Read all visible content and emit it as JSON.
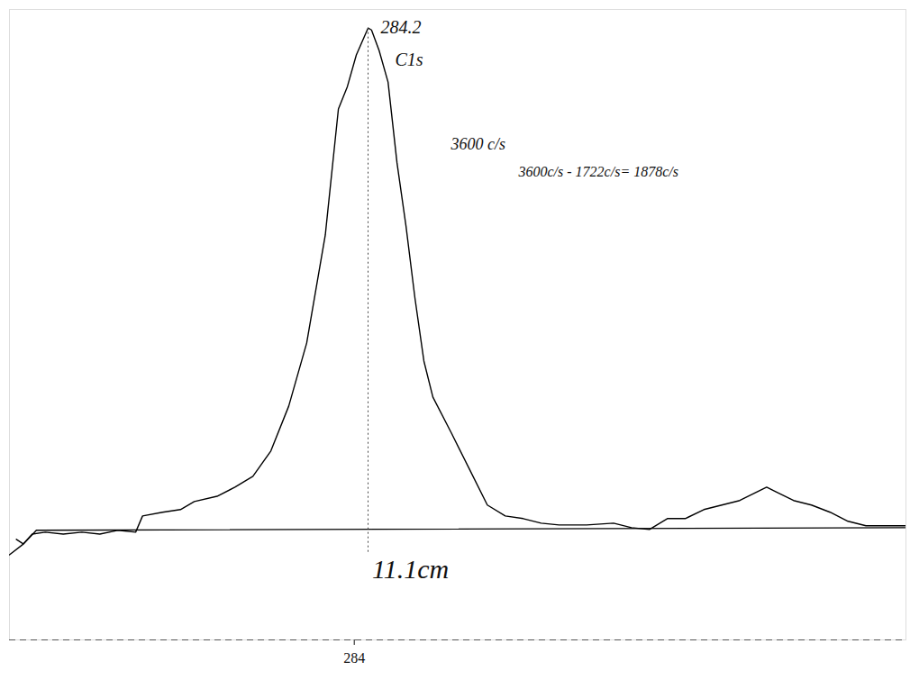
{
  "chart_data": {
    "type": "line",
    "series": [
      {
        "color": "#000000",
        "x": [
          279.1,
          279.2,
          279.33,
          279.52,
          279.78,
          280.05,
          280.31,
          280.57,
          280.83,
          280.93,
          281.22,
          281.48,
          281.68,
          282.01,
          282.27,
          282.53,
          282.79,
          283.05,
          283.31,
          283.58,
          283.77,
          283.9,
          284.03,
          284.2,
          284.25,
          284.36,
          284.49,
          284.62,
          284.75,
          284.88,
          285.01,
          285.14,
          285.41,
          285.67,
          285.93,
          286.19,
          286.45,
          286.71,
          286.97,
          287.37,
          287.76,
          288.02,
          288.28,
          288.54,
          288.8,
          289.07,
          289.33,
          289.59,
          289.98,
          290.11,
          290.37,
          290.63,
          290.9,
          291.16,
          291.42,
          291.68,
          292.0
        ],
        "values": [
          1678,
          1661,
          1698,
          1705,
          1698,
          1705,
          1698,
          1712,
          1705,
          1766,
          1780,
          1790,
          1820,
          1840,
          1874,
          1915,
          2010,
          2179,
          2416,
          2822,
          3296,
          3380,
          3499,
          3600,
          3593,
          3516,
          3397,
          3093,
          2856,
          2585,
          2348,
          2213,
          2077,
          1942,
          1807,
          1766,
          1756,
          1739,
          1732,
          1732,
          1739,
          1722,
          1715,
          1756,
          1756,
          1790,
          1807,
          1824,
          1874,
          1857,
          1824,
          1807,
          1780,
          1746,
          1729,
          1729,
          1729
        ]
      },
      {
        "color": "#000000",
        "x": [
          279.0,
          279.2,
          279.39,
          292.0
        ],
        "values": [
          1620,
          1660,
          1712,
          1722
        ]
      }
    ],
    "xlim": [
      279,
      292
    ],
    "xticks": [
      284
    ],
    "ylim": [
      1300,
      3670
    ],
    "tick_labels": "x",
    "annotations": [
      "284.2",
      "C1s",
      "3600 c/s",
      "3600c/s - 1722c/s= 1878c/s",
      "11.1cm"
    ]
  }
}
